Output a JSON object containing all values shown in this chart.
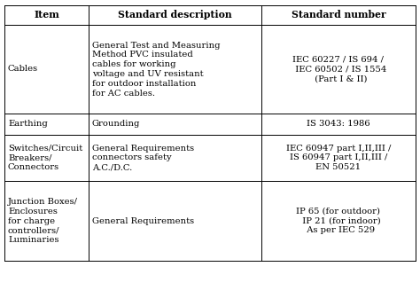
{
  "headers": [
    "Item",
    "Standard description",
    "Standard number"
  ],
  "rows": [
    {
      "item": "Cables",
      "description": "General Test and Measuring\nMethod PVC insulated\ncables for working\nvoltage and UV resistant\nfor outdoor installation\nfor AC cables.",
      "standard": "IEC 60227 / IS 694 /\n  IEC 60502 / IS 1554\n  (Part I & II)"
    },
    {
      "item": "Earthing",
      "description": "Grounding",
      "standard": "IS 3043: 1986"
    },
    {
      "item": "Switches/Circuit\nBreakers/\nConnectors",
      "description": "General Requirements\nconnectors safety\nA.C./D.C.",
      "standard": "IEC 60947 part I,II,III /\nIS 60947 part I,II,III /\nEN 50521"
    },
    {
      "item": "Junction Boxes/\nEnclosures\nfor charge\ncontrollers/\nLuminaries",
      "description": "General Requirements",
      "standard": "IP 65 (for outdoor)\n  IP 21 (for indoor)\n  As per IEC 529"
    }
  ],
  "background_color": "#ffffff",
  "line_color": "#000000",
  "text_color": "#000000",
  "font_size": 7.2,
  "header_font_size": 7.8
}
